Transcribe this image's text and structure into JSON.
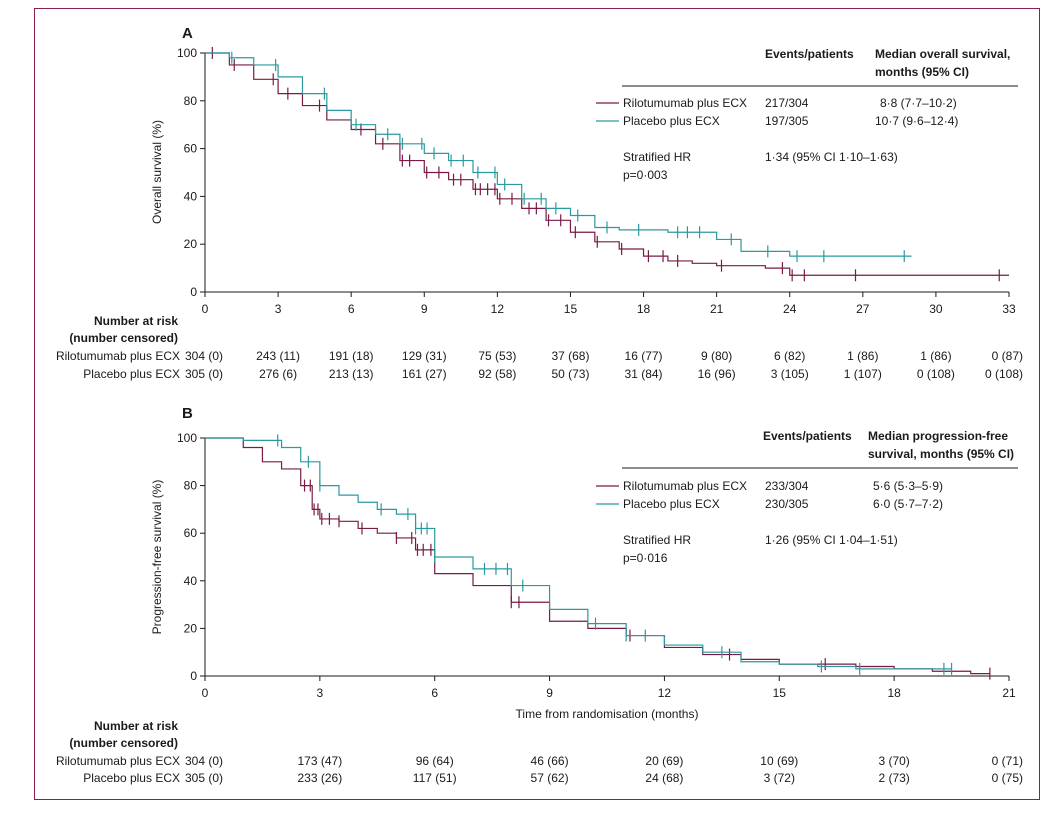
{
  "colors": {
    "rilotumumab": "#7a1a45",
    "placebo": "#2a9aa0",
    "frame": "#8b1d4f",
    "axis": "#1a1a1a"
  },
  "chart_data": [
    {
      "type": "line",
      "panel": "A",
      "ylabel": "Overall survival (%)",
      "xlabel": "",
      "xlim": [
        0,
        33
      ],
      "ylim": [
        0,
        100
      ],
      "xticks": [
        0,
        3,
        6,
        9,
        12,
        15,
        18,
        21,
        24,
        27,
        30,
        33
      ],
      "yticks": [
        0,
        20,
        40,
        60,
        80,
        100
      ],
      "legend_header": {
        "col1": "Events/patients",
        "col2a": "Median overall survival,",
        "col2b": "months (95% CI)"
      },
      "series": [
        {
          "name": "Rilotumumab plus ECX",
          "color_key": "rilotumumab",
          "events": "217/304",
          "median": "8·8 (7·7–10·2)",
          "x": [
            0,
            1,
            2,
            3,
            4,
            5,
            6,
            7,
            8,
            9,
            10,
            11,
            12,
            13,
            14,
            15,
            16,
            17,
            18,
            19,
            20,
            21,
            22,
            23,
            24,
            25,
            27,
            33
          ],
          "y": [
            100,
            95,
            89,
            83,
            78,
            72,
            68,
            62,
            55,
            50,
            47,
            43,
            39,
            35,
            30,
            25,
            21,
            18,
            15,
            13,
            12,
            11,
            11,
            10,
            7,
            7,
            7,
            7
          ],
          "censor_x": [
            0.3,
            1.2,
            2.8,
            3.4,
            4.7,
            6.4,
            7.3,
            8.1,
            8.4,
            9.1,
            9.6,
            10.2,
            10.5,
            11.1,
            11.3,
            11.6,
            11.9,
            12.1,
            12.6,
            13.3,
            13.6,
            14.1,
            14.6,
            15.2,
            16.1,
            17.1,
            18.2,
            18.8,
            19.4,
            21.2,
            23.7,
            24.1,
            24.6,
            26.7,
            32.6
          ]
        },
        {
          "name": "Placebo plus ECX",
          "color_key": "placebo",
          "events": "197/305",
          "median": "10·7 (9·6–12·4)",
          "x": [
            0,
            1,
            2,
            3,
            4,
            5,
            6,
            7,
            8,
            9,
            10,
            11,
            12,
            13,
            14,
            15,
            16,
            17,
            18,
            19,
            20,
            21,
            22,
            23,
            24,
            25,
            27,
            29
          ],
          "y": [
            100,
            98,
            95,
            90,
            83,
            76,
            70,
            66,
            62,
            58,
            55,
            50,
            45,
            39,
            35,
            32,
            27,
            26,
            26,
            25,
            25,
            22,
            17,
            17,
            15,
            15,
            15,
            15
          ],
          "censor_x": [
            1.1,
            2.9,
            4.9,
            6.2,
            7.5,
            8.1,
            8.9,
            9.4,
            10.1,
            10.6,
            11.2,
            11.9,
            12.3,
            13.1,
            13.8,
            14.4,
            15.3,
            16.5,
            17.8,
            19.4,
            19.8,
            20.3,
            21.6,
            23.1,
            24.3,
            25.4,
            28.7
          ]
        }
      ],
      "stat": {
        "label": "Stratified HR",
        "value": "1·34 (95% CI 1·10–1·63)",
        "p": "p=0·003"
      },
      "risk_table": {
        "title1": "Number at risk",
        "title2": "(number censored)",
        "rows": [
          {
            "label": "Rilotumumab plus ECX",
            "values": [
              "304 (0)",
              "243 (11)",
              "191 (18)",
              "129 (31)",
              "75 (53)",
              "37 (68)",
              "16 (77)",
              "9 (80)",
              "6 (82)",
              "1 (86)",
              "1 (86)",
              "0 (87)"
            ]
          },
          {
            "label": "Placebo plus ECX",
            "values": [
              "305 (0)",
              "276 (6)",
              "213 (13)",
              "161 (27)",
              "92 (58)",
              "50 (73)",
              "31 (84)",
              "16 (96)",
              "3 (105)",
              "1 (107)",
              "0 (108)",
              "0 (108)"
            ]
          }
        ]
      }
    },
    {
      "type": "line",
      "panel": "B",
      "ylabel": "Progression-free survival (%)",
      "xlabel": "Time from randomisation (months)",
      "xlim": [
        0,
        21
      ],
      "ylim": [
        0,
        100
      ],
      "xticks": [
        0,
        3,
        6,
        9,
        12,
        15,
        18,
        21
      ],
      "yticks": [
        0,
        20,
        40,
        60,
        80,
        100
      ],
      "legend_header": {
        "col1": "Events/patients",
        "col2a": "Median progression-free",
        "col2b": "survival, months (95% CI)"
      },
      "series": [
        {
          "name": "Rilotumumab plus ECX",
          "color_key": "rilotumumab",
          "events": "233/304",
          "median": "5·6 (5·3–5·9)",
          "x": [
            0,
            1,
            1.5,
            2,
            2.5,
            2.8,
            3,
            3.5,
            4,
            4.5,
            5,
            5.5,
            6,
            7,
            8,
            9,
            10,
            11,
            12,
            13,
            14,
            15,
            16,
            17,
            18,
            19,
            20,
            20.5
          ],
          "y": [
            100,
            96,
            90,
            87,
            80,
            70,
            66,
            65,
            62,
            60,
            58,
            53,
            43,
            38,
            31,
            23,
            20,
            17,
            12,
            9,
            7,
            5,
            5,
            4,
            3,
            2,
            1,
            1
          ],
          "censor_x": [
            2.6,
            2.75,
            2.85,
            2.95,
            3.05,
            3.25,
            3.5,
            4.1,
            5.0,
            5.4,
            5.55,
            5.7,
            5.9,
            8.0,
            8.2,
            11.1,
            13.7,
            16.2,
            20.5
          ]
        },
        {
          "name": "Placebo plus ECX",
          "color_key": "placebo",
          "events": "230/305",
          "median": "6·0 (5·7–7·2)",
          "x": [
            0,
            1,
            2,
            2.5,
            3,
            3.5,
            4,
            4.5,
            5,
            5.5,
            6,
            7,
            8,
            9,
            10,
            11,
            12,
            13,
            14,
            15,
            16,
            17,
            18,
            19,
            19.5
          ],
          "y": [
            100,
            99,
            96,
            90,
            80,
            76,
            73,
            70,
            68,
            62,
            50,
            45,
            38,
            28,
            22,
            17,
            13,
            10,
            6,
            5,
            4,
            3,
            3,
            3,
            3
          ],
          "censor_x": [
            1.9,
            2.7,
            3.0,
            4.6,
            5.3,
            5.5,
            5.65,
            5.8,
            6.0,
            7.3,
            7.6,
            7.9,
            8.3,
            10.2,
            11.0,
            11.5,
            13.5,
            16.1,
            17.1,
            19.3,
            19.5
          ]
        }
      ],
      "stat": {
        "label": "Stratified HR",
        "value": "1·26 (95% CI 1·04–1·51)",
        "p": "p=0·016"
      },
      "risk_table": {
        "title1": "Number at risk",
        "title2": "(number censored)",
        "rows": [
          {
            "label": "Rilotumumab plus ECX",
            "values": [
              "304 (0)",
              "173 (47)",
              "96 (64)",
              "46 (66)",
              "20 (69)",
              "10 (69)",
              "3 (70)",
              "0 (71)"
            ]
          },
          {
            "label": "Placebo plus ECX",
            "values": [
              "305 (0)",
              "233 (26)",
              "117 (51)",
              "57 (62)",
              "24 (68)",
              "3 (72)",
              "2 (73)",
              "0 (75)"
            ]
          }
        ]
      }
    }
  ]
}
